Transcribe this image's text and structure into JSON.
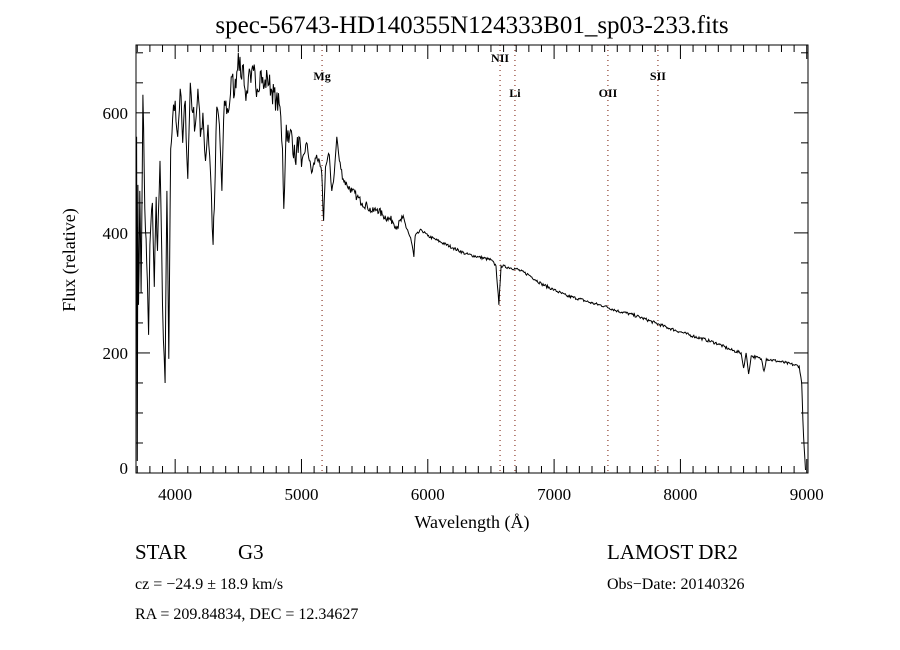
{
  "chart_data": {
    "type": "line",
    "title": "spec-56743-HD140355N124333B01_sp03-233.fits",
    "xlabel": "Wavelength (Å)",
    "ylabel": "Flux (relative)",
    "xlim": [
      3690,
      9010
    ],
    "ylim": [
      0,
      713
    ],
    "xticks": [
      4000,
      5000,
      6000,
      7000,
      8000,
      9000
    ],
    "yticks": [
      0,
      200,
      400,
      600
    ],
    "grid": false,
    "lines": [
      {
        "label": "Mg",
        "x": 5163
      },
      {
        "label": "NII",
        "x": 6572
      },
      {
        "label": "Li",
        "x": 6690
      },
      {
        "label": "OII",
        "x": 7426
      },
      {
        "label": "SII",
        "x": 7822
      }
    ],
    "line_color": "#8b3a2a",
    "series": [
      {
        "name": "flux",
        "points": [
          [
            3695,
            560
          ],
          [
            3700,
            20
          ],
          [
            3705,
            480
          ],
          [
            3710,
            280
          ],
          [
            3720,
            470
          ],
          [
            3730,
            300
          ],
          [
            3745,
            630
          ],
          [
            3760,
            440
          ],
          [
            3775,
            350
          ],
          [
            3790,
            230
          ],
          [
            3800,
            380
          ],
          [
            3820,
            450
          ],
          [
            3835,
            310
          ],
          [
            3850,
            460
          ],
          [
            3860,
            370
          ],
          [
            3880,
            520
          ],
          [
            3900,
            280
          ],
          [
            3920,
            150
          ],
          [
            3935,
            470
          ],
          [
            3950,
            190
          ],
          [
            3965,
            540
          ],
          [
            3980,
            590
          ],
          [
            4000,
            620
          ],
          [
            4020,
            560
          ],
          [
            4040,
            640
          ],
          [
            4060,
            550
          ],
          [
            4080,
            620
          ],
          [
            4100,
            490
          ],
          [
            4120,
            650
          ],
          [
            4140,
            600
          ],
          [
            4160,
            580
          ],
          [
            4180,
            640
          ],
          [
            4200,
            560
          ],
          [
            4220,
            600
          ],
          [
            4240,
            520
          ],
          [
            4260,
            580
          ],
          [
            4280,
            500
          ],
          [
            4300,
            380
          ],
          [
            4310,
            440
          ],
          [
            4330,
            610
          ],
          [
            4350,
            580
          ],
          [
            4370,
            470
          ],
          [
            4390,
            620
          ],
          [
            4420,
            600
          ],
          [
            4450,
            660
          ],
          [
            4470,
            630
          ],
          [
            4500,
            700
          ],
          [
            4520,
            660
          ],
          [
            4540,
            680
          ],
          [
            4560,
            620
          ],
          [
            4580,
            660
          ],
          [
            4600,
            650
          ],
          [
            4620,
            670
          ],
          [
            4650,
            640
          ],
          [
            4680,
            670
          ],
          [
            4700,
            640
          ],
          [
            4730,
            660
          ],
          [
            4760,
            640
          ],
          [
            4800,
            620
          ],
          [
            4830,
            610
          ],
          [
            4850,
            540
          ],
          [
            4860,
            440
          ],
          [
            4880,
            580
          ],
          [
            4900,
            550
          ],
          [
            4920,
            570
          ],
          [
            4950,
            520
          ],
          [
            4980,
            560
          ],
          [
            5000,
            510
          ],
          [
            5040,
            550
          ],
          [
            5080,
            500
          ],
          [
            5120,
            530
          ],
          [
            5160,
            500
          ],
          [
            5175,
            420
          ],
          [
            5190,
            510
          ],
          [
            5220,
            530
          ],
          [
            5240,
            470
          ],
          [
            5260,
            500
          ],
          [
            5280,
            560
          ],
          [
            5300,
            520
          ],
          [
            5330,
            490
          ],
          [
            5360,
            480
          ],
          [
            5400,
            470
          ],
          [
            5440,
            460
          ],
          [
            5480,
            450
          ],
          [
            5520,
            445
          ],
          [
            5560,
            435
          ],
          [
            5600,
            440
          ],
          [
            5640,
            430
          ],
          [
            5680,
            425
          ],
          [
            5720,
            420
          ],
          [
            5760,
            410
          ],
          [
            5800,
            425
          ],
          [
            5840,
            405
          ],
          [
            5870,
            385
          ],
          [
            5890,
            360
          ],
          [
            5900,
            395
          ],
          [
            5950,
            405
          ],
          [
            6000,
            395
          ],
          [
            6100,
            385
          ],
          [
            6200,
            375
          ],
          [
            6300,
            365
          ],
          [
            6400,
            360
          ],
          [
            6500,
            355
          ],
          [
            6540,
            345
          ],
          [
            6563,
            280
          ],
          [
            6580,
            345
          ],
          [
            6700,
            340
          ],
          [
            6800,
            330
          ],
          [
            6900,
            315
          ],
          [
            7000,
            305
          ],
          [
            7100,
            295
          ],
          [
            7200,
            290
          ],
          [
            7300,
            283
          ],
          [
            7400,
            278
          ],
          [
            7500,
            270
          ],
          [
            7600,
            265
          ],
          [
            7700,
            258
          ],
          [
            7800,
            250
          ],
          [
            7900,
            242
          ],
          [
            8000,
            235
          ],
          [
            8100,
            228
          ],
          [
            8200,
            222
          ],
          [
            8300,
            215
          ],
          [
            8400,
            205
          ],
          [
            8480,
            200
          ],
          [
            8500,
            175
          ],
          [
            8520,
            200
          ],
          [
            8540,
            165
          ],
          [
            8560,
            195
          ],
          [
            8640,
            190
          ],
          [
            8662,
            170
          ],
          [
            8680,
            190
          ],
          [
            8800,
            185
          ],
          [
            8900,
            180
          ],
          [
            8940,
            178
          ],
          [
            8960,
            150
          ],
          [
            8975,
            60
          ],
          [
            8990,
            5
          ]
        ]
      }
    ]
  },
  "info": {
    "object_class": "STAR",
    "subclass": "G3",
    "cz": "cz = −24.9 ± 18.9 km/s",
    "coords": "RA = 209.84834, DEC =  12.34627",
    "survey": "LAMOST DR2",
    "obs_date": "Obs−Date: 20140326"
  }
}
